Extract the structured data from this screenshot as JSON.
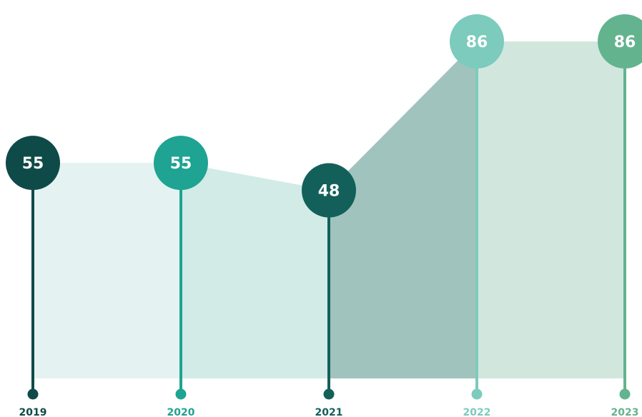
{
  "chart_data": {
    "type": "area",
    "title": "",
    "xlabel": "",
    "ylabel": "",
    "categories": [
      "2019",
      "2020",
      "2021",
      "2022",
      "2023"
    ],
    "values": [
      55,
      55,
      48,
      86,
      86
    ],
    "ylim": [
      0,
      86
    ],
    "grid": false,
    "legend": "none",
    "colors": {
      "markers": [
        "#0e4a48",
        "#1fa392",
        "#13605a",
        "#7ccbbd",
        "#63b38f"
      ],
      "labels": [
        "#0e4a48",
        "#1fa392",
        "#13605a",
        "#7ccbbd",
        "#63b38f"
      ],
      "fills": [
        "#e4f3f1",
        "#d2ebe6",
        "#a1c3bd",
        "#d1e7de"
      ]
    }
  }
}
